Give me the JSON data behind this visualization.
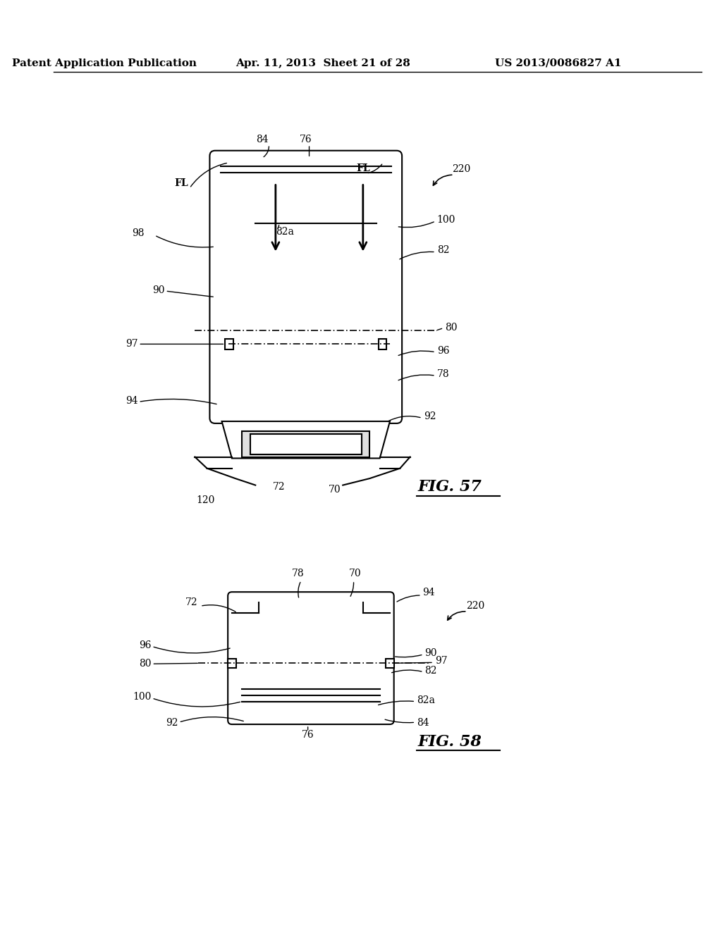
{
  "bg_color": "#ffffff",
  "line_color": "#000000",
  "header_left": "Patent Application Publication",
  "header_center": "Apr. 11, 2013  Sheet 21 of 28",
  "header_right": "US 2013/0086827 A1",
  "fig57_label": "FIG. 57",
  "fig58_label": "FIG. 58",
  "font_size_header": 11,
  "font_size_labels": 10,
  "font_size_figs": 14
}
